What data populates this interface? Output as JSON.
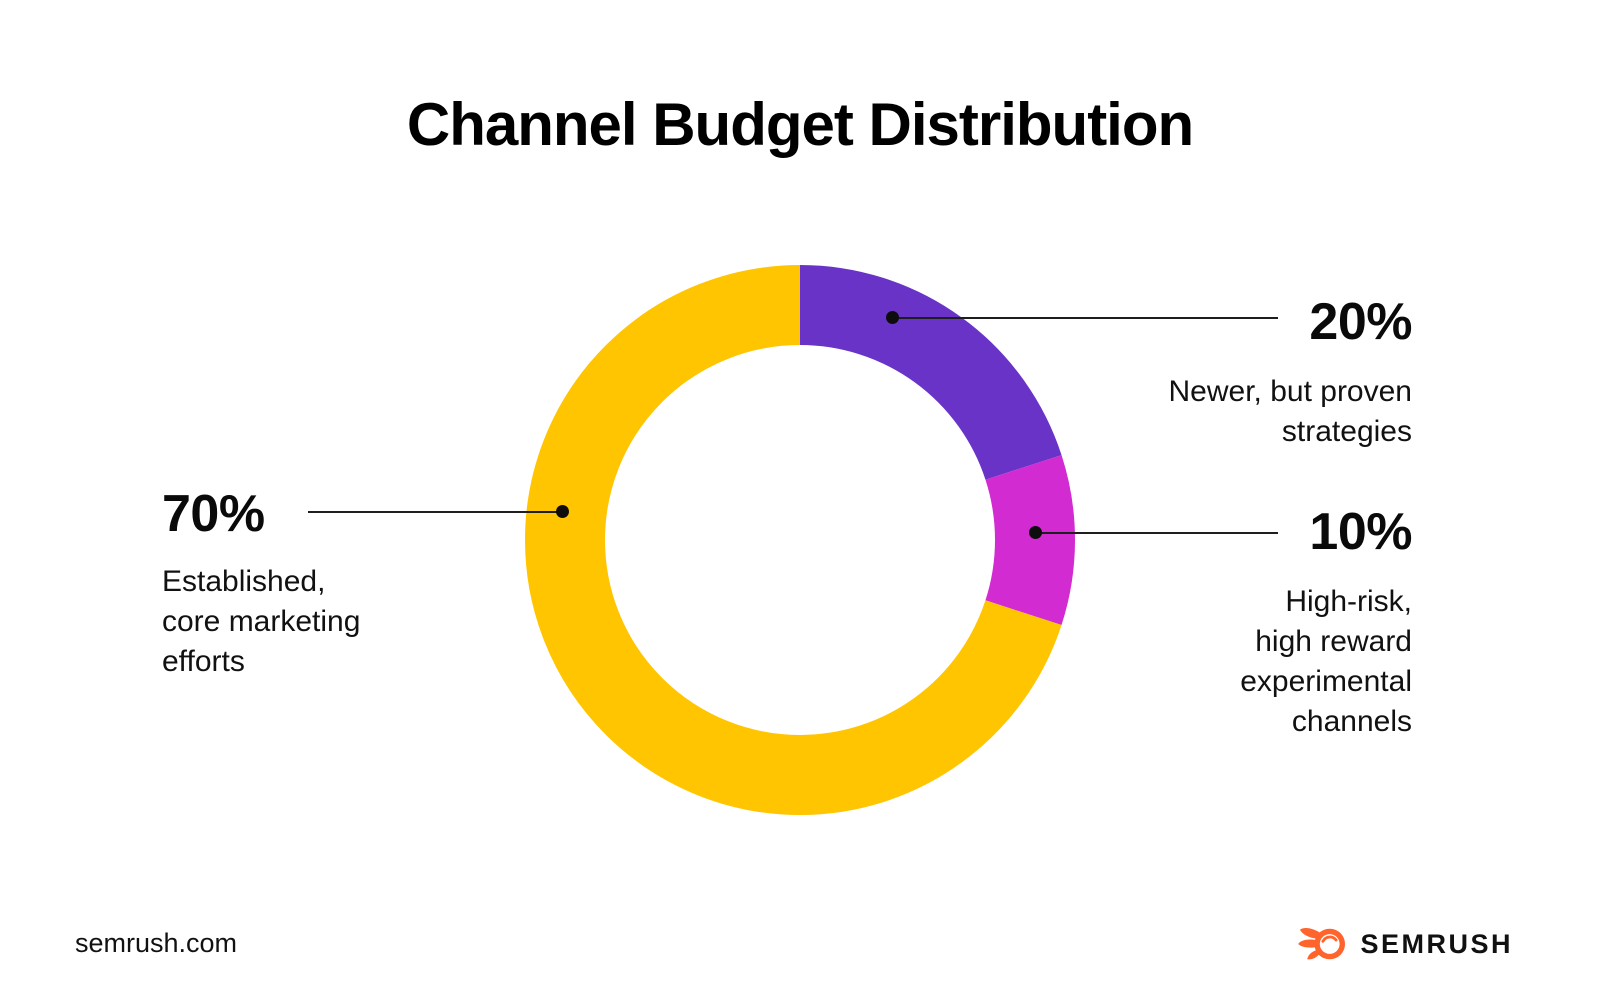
{
  "title": "Channel Budget Distribution",
  "chart_data": {
    "type": "pie",
    "subtype": "donut",
    "title": "Channel Budget Distribution",
    "start_angle_deg": 0,
    "direction": "clockwise",
    "inner_radius_ratio": 0.71,
    "segments": [
      {
        "label": "Newer, but proven strategies",
        "value": 20,
        "pct_label": "20%",
        "color": "#6A33C8"
      },
      {
        "label": "High-risk, high reward experimental channels",
        "value": 10,
        "pct_label": "10%",
        "color": "#D12BD1"
      },
      {
        "label": "Established, core marketing efforts",
        "value": 70,
        "pct_label": "70%",
        "color": "#FFC500"
      }
    ]
  },
  "callouts": {
    "seg20": {
      "pct": "20%",
      "lines": [
        "Newer, but proven",
        "strategies"
      ]
    },
    "seg10": {
      "pct": "10%",
      "lines": [
        "High-risk,",
        "high reward",
        "experimental",
        "channels"
      ]
    },
    "seg70": {
      "pct": "70%",
      "lines": [
        "Established,",
        "core marketing",
        "efforts"
      ]
    }
  },
  "footer": {
    "website": "semrush.com",
    "brand": "SEMRUSH"
  },
  "colors": {
    "yellow": "#FFC500",
    "purple": "#6A33C8",
    "magenta": "#D12BD1",
    "logo_orange": "#FF642D",
    "leader_line": "#1E1E1E",
    "text": "#000000",
    "background": "#FFFFFF"
  }
}
